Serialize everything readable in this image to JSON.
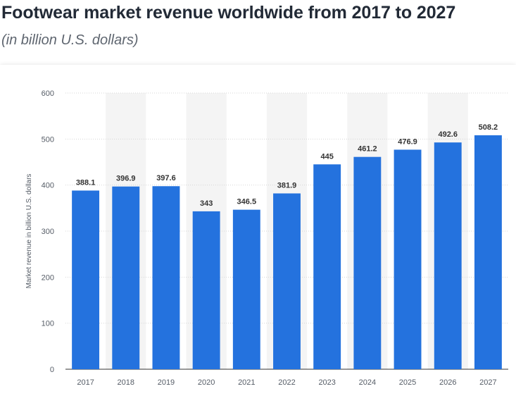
{
  "title": "Footwear market revenue worldwide from 2017 to 2027",
  "subtitle": "(in billion U.S. dollars)",
  "chart_data": {
    "type": "bar",
    "categories": [
      "2017",
      "2018",
      "2019",
      "2020",
      "2021",
      "2022",
      "2023",
      "2024",
      "2025",
      "2026",
      "2027"
    ],
    "values": [
      388.1,
      396.9,
      397.6,
      343,
      346.5,
      381.9,
      445,
      461.2,
      476.9,
      492.6,
      508.2
    ],
    "value_labels": [
      "388.1",
      "396.9",
      "397.6",
      "343",
      "346.5",
      "381.9",
      "445",
      "461.2",
      "476.9",
      "492.6",
      "508.2"
    ],
    "ylabel": "Market revenue in billion U.S. dollars",
    "ylim": [
      0,
      600
    ],
    "yticks": [
      "0",
      "100",
      "200",
      "300",
      "400",
      "500",
      "600"
    ],
    "grid": true,
    "bar_color": "#2472de",
    "alt_band_color": "#f4f4f4"
  }
}
